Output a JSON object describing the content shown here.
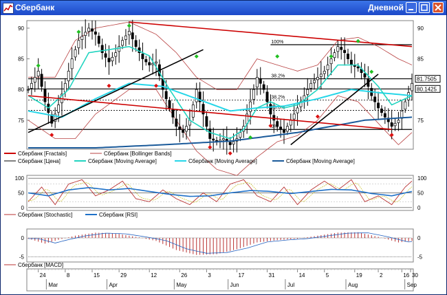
{
  "window": {
    "title": "Сбербанк",
    "period": "Дневной"
  },
  "colors": {
    "price": "#000000",
    "fractals": "#cc0000",
    "bollinger": "#b84040",
    "ma_fast": "#21d4c0",
    "ma_mid": "#26d6e8",
    "ma_slow": "#1a5a9a",
    "stochastic": "#b83030",
    "rsi": "#1e70c8",
    "macd": "#b83030"
  },
  "chart_data": [
    {
      "type": "line",
      "panel": "price",
      "y_ticks": [
        "90",
        "85",
        "80",
        "75"
      ],
      "ylim": [
        70.5,
        91
      ],
      "x_range": [
        0,
        114
      ],
      "series": [
        {
          "name": "Сбербанк [Fractals]",
          "values": []
        },
        {
          "name": "Сбербанк [Bollinger Bands]",
          "values": []
        },
        {
          "name": "Сбербанк [Цена]",
          "values": []
        },
        {
          "name": "Сбербанк [Moving Average]",
          "values": []
        },
        {
          "name": "Сбербанк [Moving Average]",
          "values": []
        },
        {
          "name": "Сбербанк [Moving Average]",
          "values": []
        }
      ],
      "price_anchors": [
        [
          0,
          80
        ],
        [
          3,
          83
        ],
        [
          5,
          78
        ],
        [
          7,
          74.5
        ],
        [
          9,
          77.5
        ],
        [
          11,
          81
        ],
        [
          13,
          85
        ],
        [
          15,
          88
        ],
        [
          18,
          90
        ],
        [
          20,
          89
        ],
        [
          22,
          86
        ],
        [
          24,
          84.5
        ],
        [
          26,
          86
        ],
        [
          28,
          88
        ],
        [
          30,
          89.5
        ],
        [
          32,
          87
        ],
        [
          34,
          85
        ],
        [
          36,
          84
        ],
        [
          38,
          84.5
        ],
        [
          40,
          80
        ],
        [
          42,
          77
        ],
        [
          44,
          74
        ],
        [
          46,
          73
        ],
        [
          48,
          75
        ],
        [
          50,
          80
        ],
        [
          52,
          76
        ],
        [
          54,
          72
        ],
        [
          56,
          71.5
        ],
        [
          58,
          72
        ],
        [
          60,
          71
        ],
        [
          62,
          72
        ],
        [
          64,
          74
        ],
        [
          66,
          78
        ],
        [
          68,
          82
        ],
        [
          70,
          80
        ],
        [
          72,
          76
        ],
        [
          74,
          74
        ],
        [
          76,
          73
        ],
        [
          78,
          75
        ],
        [
          80,
          77
        ],
        [
          82,
          79
        ],
        [
          84,
          81
        ],
        [
          86,
          82
        ],
        [
          88,
          83
        ],
        [
          90,
          85
        ],
        [
          92,
          87
        ],
        [
          94,
          86
        ],
        [
          96,
          84
        ],
        [
          98,
          83.5
        ],
        [
          100,
          82
        ],
        [
          102,
          79
        ],
        [
          104,
          77
        ],
        [
          106,
          75.5
        ],
        [
          108,
          74
        ],
        [
          110,
          75
        ],
        [
          112,
          78
        ],
        [
          114,
          81
        ]
      ],
      "ma_fast_anchors": [
        [
          0,
          79
        ],
        [
          6,
          77
        ],
        [
          12,
          80
        ],
        [
          18,
          86
        ],
        [
          24,
          86.5
        ],
        [
          30,
          87
        ],
        [
          36,
          85.5
        ],
        [
          42,
          80
        ],
        [
          48,
          75
        ],
        [
          54,
          73
        ],
        [
          60,
          72
        ],
        [
          64,
          73.5
        ],
        [
          68,
          77
        ],
        [
          72,
          78
        ],
        [
          76,
          77
        ],
        [
          80,
          77.5
        ],
        [
          86,
          80
        ],
        [
          92,
          84
        ],
        [
          98,
          84
        ],
        [
          104,
          80.5
        ],
        [
          108,
          77.5
        ],
        [
          114,
          79
        ]
      ],
      "ma_mid_anchors": [
        [
          0,
          76.5
        ],
        [
          10,
          75.5
        ],
        [
          20,
          78.5
        ],
        [
          30,
          81
        ],
        [
          40,
          80.5
        ],
        [
          50,
          78.5
        ],
        [
          60,
          76.5
        ],
        [
          68,
          77
        ],
        [
          76,
          77.3
        ],
        [
          86,
          78.5
        ],
        [
          96,
          80
        ],
        [
          104,
          79.5
        ],
        [
          114,
          79
        ]
      ],
      "ma_slow_anchors": [
        [
          0,
          70.5
        ],
        [
          20,
          70.5
        ],
        [
          40,
          71
        ],
        [
          60,
          71.6
        ],
        [
          80,
          73
        ],
        [
          100,
          75
        ],
        [
          114,
          75.5
        ]
      ],
      "bollinger_upper_anchors": [
        [
          0,
          82
        ],
        [
          8,
          82
        ],
        [
          14,
          88
        ],
        [
          20,
          90
        ],
        [
          30,
          91
        ],
        [
          38,
          89
        ],
        [
          44,
          86
        ],
        [
          50,
          82
        ],
        [
          56,
          80
        ],
        [
          62,
          80
        ],
        [
          68,
          85
        ],
        [
          74,
          84
        ],
        [
          80,
          83
        ],
        [
          86,
          84
        ],
        [
          92,
          88
        ],
        [
          98,
          88.5
        ],
        [
          104,
          87
        ],
        [
          110,
          85
        ],
        [
          114,
          84
        ]
      ],
      "bollinger_lower_anchors": [
        [
          0,
          75
        ],
        [
          8,
          72
        ],
        [
          14,
          72
        ],
        [
          20,
          76
        ],
        [
          30,
          80
        ],
        [
          38,
          80
        ],
        [
          44,
          75
        ],
        [
          50,
          70
        ],
        [
          56,
          67
        ],
        [
          62,
          66
        ],
        [
          68,
          69
        ],
        [
          74,
          71.5
        ],
        [
          80,
          72.5
        ],
        [
          86,
          75
        ],
        [
          92,
          79
        ],
        [
          98,
          78
        ],
        [
          104,
          74.5
        ],
        [
          110,
          71
        ],
        [
          114,
          73
        ]
      ],
      "fractal_up": [
        [
          3,
          83
        ],
        [
          15,
          88.5
        ],
        [
          30,
          89.5
        ],
        [
          50,
          84.5
        ],
        [
          66,
          71.3
        ],
        [
          74,
          84.5
        ],
        [
          90,
          84.5
        ],
        [
          98,
          87
        ],
        [
          102,
          82
        ]
      ],
      "fractal_down": [
        [
          7,
          73.5
        ],
        [
          24,
          81.5
        ],
        [
          38,
          81.5
        ],
        [
          54,
          71.5
        ],
        [
          60,
          70.5
        ],
        [
          72,
          75
        ],
        [
          86,
          76.5
        ],
        [
          108,
          73.5
        ]
      ],
      "horizontal_lines": [
        {
          "y": 87.3,
          "label": "100%"
        },
        {
          "y": 81.75,
          "label": "38.2%"
        },
        {
          "y": 80.1,
          "label": ""
        },
        {
          "y": 78.3,
          "label": "38.2%"
        },
        {
          "y": 76.6,
          "label": "23.6%"
        },
        {
          "y": 73.5,
          "label": "0%"
        }
      ],
      "value_labels": [
        "81.7505",
        "80.1425"
      ],
      "trend_lines": [
        {
          "x0": 0,
          "y0": 73,
          "x1": 52,
          "y1": 86.5,
          "color": "#000000"
        },
        {
          "x0": 0,
          "y0": 79,
          "x1": 108,
          "y1": 73.5,
          "color": "#cc0000"
        },
        {
          "x0": 30,
          "y0": 91,
          "x1": 114,
          "y1": 87,
          "color": "#cc0000"
        },
        {
          "x0": 78,
          "y0": 71,
          "x1": 104,
          "y1": 82.5,
          "color": "#000000"
        }
      ]
    },
    {
      "type": "line",
      "panel": "oscillators",
      "y_ticks": [
        "100",
        "50",
        "0"
      ],
      "ylim": [
        -5,
        105
      ],
      "series": [
        {
          "name": "Сбербанк [Stochastic]",
          "values": []
        },
        {
          "name": "Сбербанк [RSI]",
          "values": []
        }
      ],
      "stochastic_anchors": [
        [
          0,
          20
        ],
        [
          4,
          70
        ],
        [
          8,
          10
        ],
        [
          12,
          80
        ],
        [
          16,
          95
        ],
        [
          20,
          40
        ],
        [
          24,
          60
        ],
        [
          28,
          90
        ],
        [
          32,
          30
        ],
        [
          36,
          20
        ],
        [
          40,
          60
        ],
        [
          44,
          30
        ],
        [
          48,
          10
        ],
        [
          52,
          50
        ],
        [
          56,
          20
        ],
        [
          60,
          80
        ],
        [
          64,
          95
        ],
        [
          68,
          40
        ],
        [
          72,
          20
        ],
        [
          76,
          70
        ],
        [
          80,
          10
        ],
        [
          84,
          60
        ],
        [
          88,
          90
        ],
        [
          92,
          60
        ],
        [
          96,
          95
        ],
        [
          100,
          20
        ],
        [
          104,
          40
        ],
        [
          108,
          10
        ],
        [
          112,
          70
        ],
        [
          114,
          90
        ]
      ],
      "rsi_anchors": [
        [
          0,
          50
        ],
        [
          6,
          40
        ],
        [
          12,
          60
        ],
        [
          18,
          68
        ],
        [
          24,
          60
        ],
        [
          30,
          65
        ],
        [
          36,
          55
        ],
        [
          42,
          45
        ],
        [
          48,
          38
        ],
        [
          54,
          40
        ],
        [
          60,
          50
        ],
        [
          66,
          58
        ],
        [
          72,
          55
        ],
        [
          78,
          48
        ],
        [
          84,
          55
        ],
        [
          90,
          62
        ],
        [
          96,
          60
        ],
        [
          102,
          48
        ],
        [
          108,
          40
        ],
        [
          114,
          55
        ]
      ]
    },
    {
      "type": "bar",
      "panel": "macd",
      "y_ticks": [
        "0",
        "-5"
      ],
      "ylim": [
        -6,
        2
      ],
      "series": [
        {
          "name": "Сбербанк [MACD]",
          "values": []
        }
      ],
      "macd_anchors": [
        [
          0,
          -0.2
        ],
        [
          5,
          -1.5
        ],
        [
          9,
          -0.5
        ],
        [
          14,
          0.6
        ],
        [
          20,
          1.4
        ],
        [
          26,
          1.2
        ],
        [
          32,
          0.3
        ],
        [
          38,
          -0.8
        ],
        [
          44,
          -3.2
        ],
        [
          50,
          -4.5
        ],
        [
          56,
          -4.3
        ],
        [
          62,
          -3
        ],
        [
          68,
          -1.2
        ],
        [
          74,
          -0.6
        ],
        [
          80,
          -0.2
        ],
        [
          86,
          0.6
        ],
        [
          92,
          1.4
        ],
        [
          98,
          1.5
        ],
        [
          104,
          0.3
        ],
        [
          110,
          -1.2
        ],
        [
          114,
          -0.8
        ]
      ]
    }
  ],
  "x_axis": {
    "day_labels": [
      "24",
      "8",
      "15",
      "29",
      "12",
      "26",
      "3",
      "17",
      "31",
      "14",
      "5",
      "19",
      "2",
      "16",
      "30"
    ],
    "month_labels": [
      "Mar",
      "Apr",
      "May",
      "Jun",
      "Jul",
      "Aug",
      "Sep"
    ]
  },
  "legend": {
    "row1": [
      "Сбербанк [Fractals]",
      "Сбербанк [Bollinger Bands]"
    ],
    "row2": [
      "Сбербанк [Цена]",
      "Сбербанк [Moving Average]",
      "Сбербанк [Moving Average]",
      "Сбербанк [Moving Average]"
    ],
    "osc": [
      "Сбербанк [Stochastic]",
      "Сбербанк [RSI]"
    ],
    "macd": [
      "Сбербанк [MACD]"
    ]
  }
}
